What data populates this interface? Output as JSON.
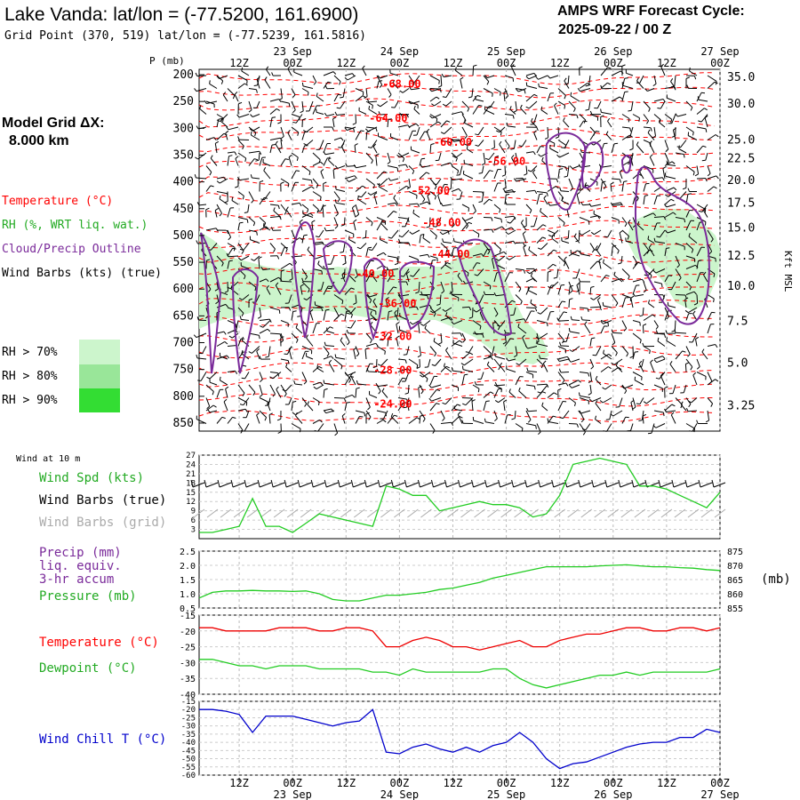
{
  "header": {
    "title": "Lake Vanda:  lat/lon = (-77.5200, 161.6900)",
    "subtitle": "Grid Point (370, 519) lat/lon = (-77.5239, 161.5816)",
    "cycle_label": "AMPS WRF Forecast Cycle:",
    "cycle_value": "2025-09-22 / 00  Z"
  },
  "legend": {
    "model_grid_label": "Model Grid ΔX:",
    "model_grid_value": "8.000 km",
    "temperature": "Temperature (°C)",
    "rh": "RH (%, WRT liq. wat.)",
    "cloud": "Cloud/Precip Outline",
    "wind_barbs": "Wind Barbs (kts) (true)",
    "rh70": "RH > 70%",
    "rh80": "RH > 80%",
    "rh90": "RH > 90%",
    "wind_at_10m": "Wind at 10 m",
    "wind_spd": "Wind Spd (kts)",
    "wind_barbs_true": "Wind Barbs (true)",
    "wind_barbs_grid": "Wind Barbs (grid)",
    "precip1": "Precip (mm)",
    "precip2": "liq. equiv.",
    "precip3": "3-hr accum",
    "pressure": "Pressure (mb)",
    "temp2": "Temperature (°C)",
    "dewpoint": "Dewpoint (°C)",
    "wind_chill": "Wind Chill T (°C)",
    "p_axis_title": "P (mb)",
    "kft_title": "Kft MSL",
    "mb_right": "(mb)"
  },
  "colors": {
    "temp": "#ff0000",
    "rh_green": "#22cc22",
    "cloud": "#7a2a9a",
    "precip_text": "#7a2a9a",
    "wind_chill": "#0000cc",
    "grid_barb": "#aaaaaa",
    "rh70": "#ccf5cc",
    "rh80": "#99e699",
    "rh90": "#33dd33"
  },
  "time_axis": {
    "hour_labels": [
      "12Z",
      "00Z",
      "12Z",
      "00Z",
      "12Z",
      "00Z",
      "12Z",
      "00Z",
      "12Z",
      "00Z"
    ],
    "hour_positions_h": [
      12,
      24,
      36,
      48,
      60,
      72,
      84,
      96,
      108,
      120
    ],
    "date_labels": [
      "23 Sep",
      "24 Sep",
      "25 Sep",
      "26 Sep",
      "27 Sep"
    ],
    "date_positions_h": [
      24,
      48,
      72,
      96,
      120
    ],
    "start_h": 3,
    "end_h": 120
  },
  "chart_data": [
    {
      "type": "contour-cross-section",
      "title": "Lake Vanda:  lat/lon = (-77.5200, 161.6900)",
      "pressure_ticks": [
        "200",
        "250",
        "300",
        "350",
        "400",
        "450",
        "500",
        "550",
        "600",
        "650",
        "700",
        "750",
        "800",
        "850"
      ],
      "pressure_values": [
        200,
        250,
        300,
        350,
        400,
        450,
        500,
        550,
        600,
        650,
        700,
        750,
        800,
        850
      ],
      "ylim": [
        190,
        865
      ],
      "kft_ticks": [
        "35.0",
        "30.0",
        "25.0",
        "22.5",
        "20.0",
        "17.5",
        "15.0",
        "12.5",
        "10.0",
        "7.5",
        "5.0",
        "3.25"
      ],
      "kft_pressure": [
        205,
        255,
        322,
        357,
        397,
        440,
        486,
        538,
        595,
        660,
        738,
        818,
        868
      ],
      "temperature_contour_labels": [
        {
          "label": "-68.00",
          "t_h": 48.5,
          "p": 224
        },
        {
          "label": "-64.00",
          "t_h": 45.5,
          "p": 288
        },
        {
          "label": "-60.00",
          "t_h": 60.0,
          "p": 333
        },
        {
          "label": "-56.00",
          "t_h": 72.0,
          "p": 368
        },
        {
          "label": "-52.00",
          "t_h": 55.0,
          "p": 423
        },
        {
          "label": "-48.00",
          "t_h": 57.5,
          "p": 483
        },
        {
          "label": "-44.00",
          "t_h": 59.5,
          "p": 542
        },
        {
          "label": "-40.00",
          "t_h": 42.5,
          "p": 578
        },
        {
          "label": "-36.00",
          "t_h": 47.5,
          "p": 634
        },
        {
          "label": "-32.00",
          "t_h": 46.5,
          "p": 695
        },
        {
          "label": "-28.00",
          "t_h": 46.5,
          "p": 758
        },
        {
          "label": "-24.00",
          "t_h": 46.5,
          "p": 821
        }
      ]
    },
    {
      "type": "line",
      "title": "Wind Spd (kts)",
      "ylim": [
        0,
        27
      ],
      "yticks": [
        "3",
        "6",
        "9",
        "12",
        "15",
        "18",
        "21",
        "24",
        "27"
      ],
      "x_h": [
        3,
        6,
        9,
        12,
        15,
        18,
        21,
        24,
        27,
        30,
        33,
        36,
        39,
        42,
        45,
        48,
        51,
        54,
        57,
        60,
        63,
        66,
        69,
        72,
        75,
        78,
        81,
        84,
        87,
        90,
        93,
        96,
        99,
        102,
        105,
        108,
        111,
        114,
        117,
        120
      ],
      "values": [
        2,
        2,
        3,
        4,
        13,
        4,
        4,
        2,
        5,
        8,
        7,
        6,
        5,
        4,
        17,
        16,
        14,
        14,
        9,
        10,
        11,
        12,
        11,
        11,
        10,
        7,
        8,
        14,
        24,
        25,
        26,
        25,
        24,
        17,
        17,
        16,
        14,
        12,
        10,
        15
      ]
    },
    {
      "type": "line",
      "title": "Pressure (mb)",
      "ylim": [
        855,
        875
      ],
      "right_ticks": [
        "875",
        "870",
        "865",
        "860",
        "855"
      ],
      "left_ticks": [
        "2.5",
        "2.0",
        "1.5",
        "1.0",
        "0.5"
      ],
      "x_h": [
        3,
        6,
        9,
        12,
        15,
        18,
        21,
        24,
        27,
        30,
        33,
        36,
        39,
        42,
        45,
        48,
        51,
        54,
        57,
        60,
        63,
        66,
        69,
        72,
        75,
        78,
        81,
        84,
        87,
        90,
        93,
        96,
        99,
        102,
        105,
        108,
        111,
        114,
        117,
        120
      ],
      "values": [
        858.5,
        860.5,
        861,
        861,
        861.2,
        861,
        861,
        860.8,
        861,
        860,
        858,
        857.5,
        857.5,
        858.5,
        859.5,
        859.5,
        860,
        860.5,
        861.5,
        862,
        863,
        864,
        865.5,
        866.5,
        867.5,
        868.5,
        869.5,
        869.5,
        869.5,
        869.5,
        869.8,
        870,
        870.2,
        869.8,
        869.5,
        869.5,
        869.2,
        869,
        868.5,
        868.2
      ]
    },
    {
      "type": "line",
      "title": "Temperature (°C) / Dewpoint (°C)",
      "ylim": [
        -40,
        -15
      ],
      "yticks": [
        "-15",
        "-20",
        "-25",
        "-30",
        "-35",
        "-40"
      ],
      "series": [
        {
          "name": "Temperature (°C)",
          "x_h": [
            3,
            6,
            9,
            12,
            15,
            18,
            21,
            24,
            27,
            30,
            33,
            36,
            39,
            42,
            45,
            48,
            51,
            54,
            57,
            60,
            63,
            66,
            69,
            72,
            75,
            78,
            81,
            84,
            87,
            90,
            93,
            96,
            99,
            102,
            105,
            108,
            111,
            114,
            117,
            120
          ],
          "values": [
            -19,
            -19,
            -20,
            -20,
            -20,
            -20,
            -19,
            -19,
            -19,
            -20,
            -20,
            -19,
            -19,
            -20,
            -25,
            -25,
            -23,
            -22,
            -23,
            -25,
            -25,
            -26,
            -25,
            -24,
            -23,
            -25,
            -25,
            -23,
            -22,
            -21,
            -21,
            -20,
            -19,
            -19,
            -20,
            -20,
            -19,
            -19,
            -20,
            -19
          ]
        },
        {
          "name": "Dewpoint (°C)",
          "x_h": [
            3,
            6,
            9,
            12,
            15,
            18,
            21,
            24,
            27,
            30,
            33,
            36,
            39,
            42,
            45,
            48,
            51,
            54,
            57,
            60,
            63,
            66,
            69,
            72,
            75,
            78,
            81,
            84,
            87,
            90,
            93,
            96,
            99,
            102,
            105,
            108,
            111,
            114,
            117,
            120
          ],
          "values": [
            -29,
            -29,
            -30,
            -31,
            -31,
            -32,
            -31,
            -31,
            -31,
            -32,
            -32,
            -32,
            -32,
            -33,
            -33,
            -34,
            -32,
            -33,
            -33,
            -33,
            -33,
            -33,
            -32,
            -32,
            -35,
            -37,
            -38,
            -37,
            -36,
            -35,
            -34,
            -34,
            -33,
            -34,
            -33,
            -33,
            -33,
            -33,
            -33,
            -32
          ]
        }
      ]
    },
    {
      "type": "line",
      "title": "Wind Chill T (°C)",
      "ylim": [
        -60,
        -15
      ],
      "yticks": [
        "-15",
        "-20",
        "-25",
        "-30",
        "-35",
        "-40",
        "-45",
        "-50",
        "-55",
        "-60"
      ],
      "x_h": [
        3,
        6,
        9,
        12,
        15,
        18,
        21,
        24,
        27,
        30,
        33,
        36,
        39,
        42,
        45,
        48,
        51,
        54,
        57,
        60,
        63,
        66,
        69,
        72,
        75,
        78,
        81,
        84,
        87,
        90,
        93,
        96,
        99,
        102,
        105,
        108,
        111,
        114,
        117,
        120
      ],
      "values": [
        -20,
        -20,
        -21,
        -23,
        -34,
        -24,
        -24,
        -24,
        -26,
        -28,
        -30,
        -28,
        -27,
        -20,
        -46,
        -47,
        -43,
        -41,
        -44,
        -46,
        -43,
        -46,
        -42,
        -40,
        -34,
        -40,
        -50,
        -56,
        -53,
        -52,
        -49,
        -46,
        -43,
        -41,
        -40,
        -40,
        -37,
        -37,
        -32,
        -34
      ]
    }
  ]
}
